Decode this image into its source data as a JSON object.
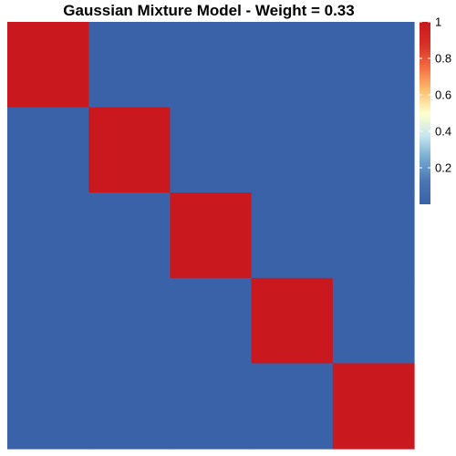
{
  "chart_data": {
    "type": "heatmap",
    "title": "Gaussian Mixture Model - Weight = 0.33",
    "xlabel": "",
    "ylabel": "",
    "rows": 5,
    "cols": 5,
    "values": [
      [
        1,
        0,
        0,
        0,
        0
      ],
      [
        0,
        1,
        0,
        0,
        0
      ],
      [
        0,
        0,
        1,
        0,
        0
      ],
      [
        0,
        0,
        0,
        1,
        0
      ],
      [
        0,
        0,
        0,
        0,
        1
      ]
    ],
    "color_scale": {
      "min": 0,
      "max": 1,
      "stops": [
        "#3a62a8",
        "#4a76b3",
        "#74a9cf",
        "#c6e6f0",
        "#ffffcc",
        "#fdbf6f",
        "#f46d43",
        "#d73027",
        "#c9181e"
      ],
      "legend_ticks": [
        0.2,
        0.4,
        0.6,
        0.8,
        1
      ],
      "legend_tick_labels": [
        "0.2",
        "0.4",
        "0.6",
        "0.8",
        "1"
      ]
    },
    "legend_position": "right",
    "grid": false
  }
}
